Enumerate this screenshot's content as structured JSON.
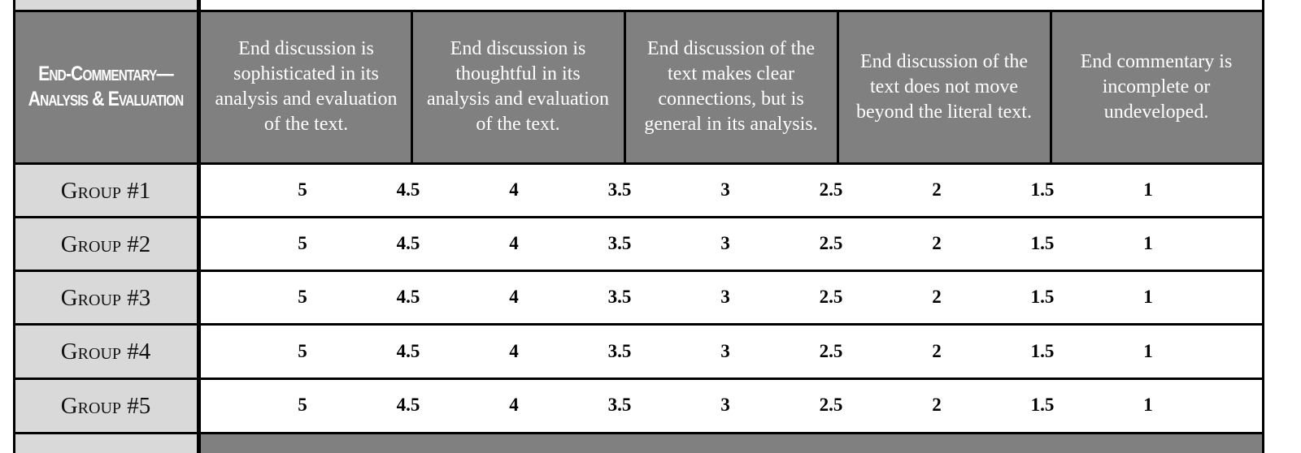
{
  "rubric": {
    "header": {
      "label": "End-Commentary—Analysis & Evaluation",
      "descriptors": [
        "End discussion is sophisticated in its analysis and evaluation of the text.",
        "End discussion is thoughtful in its analysis and evaluation of the text.",
        "End discussion of the text makes clear connections, but is general in its analysis.",
        "End discussion of the text does not move beyond the literal text.",
        "End commentary is incomplete or undeveloped."
      ]
    },
    "rows": [
      {
        "label": "Group #1",
        "scores": [
          "5",
          "4.5",
          "4",
          "3.5",
          "3",
          "2.5",
          "2",
          "1.5",
          "1"
        ]
      },
      {
        "label": "Group #2",
        "scores": [
          "5",
          "4.5",
          "4",
          "3.5",
          "3",
          "2.5",
          "2",
          "1.5",
          "1"
        ]
      },
      {
        "label": "Group #3",
        "scores": [
          "5",
          "4.5",
          "4",
          "3.5",
          "3",
          "2.5",
          "2",
          "1.5",
          "1"
        ]
      },
      {
        "label": "Group #4",
        "scores": [
          "5",
          "4.5",
          "4",
          "3.5",
          "3",
          "2.5",
          "2",
          "1.5",
          "1"
        ]
      },
      {
        "label": "Group #5",
        "scores": [
          "5",
          "4.5",
          "4",
          "3.5",
          "3",
          "2.5",
          "2",
          "1.5",
          "1"
        ]
      }
    ]
  }
}
